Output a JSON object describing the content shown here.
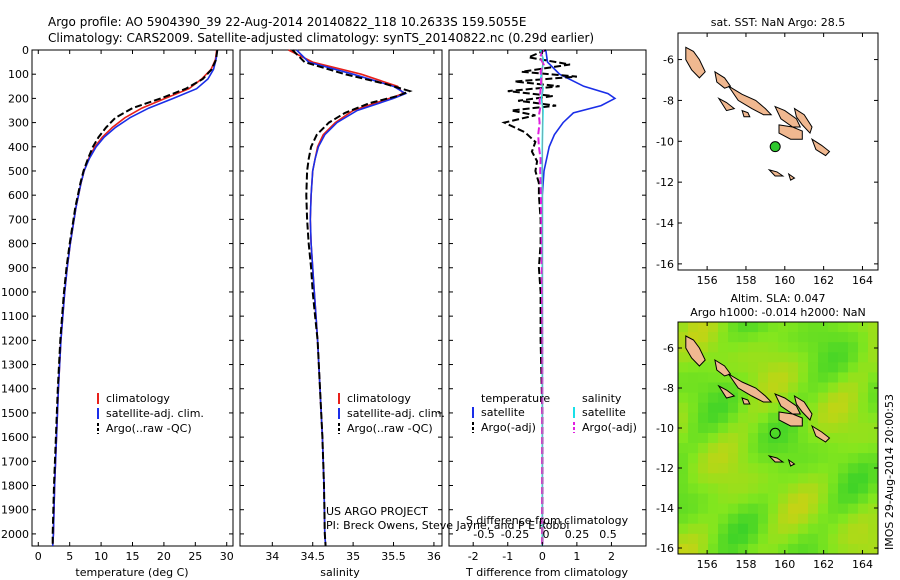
{
  "header": {
    "title_line1": "Argo profile: AO 5904390_39 22-Aug-2014 20140822_118 10.2633S 159.5055E",
    "title_line2": "Climatology: CARS2009. Satellite-adjusted climatology: synTS_20140822.nc (0.29d earlier)"
  },
  "colors": {
    "climatology": "#e8201a",
    "satellite": "#1a2ee8",
    "argo": "#000000",
    "sat_salinity": "#18e0e8",
    "argo_salinity": "#e020e0",
    "land": "#f0b890",
    "sla_base": "#5ad22a"
  },
  "credit": {
    "line1": "US ARGO PROJECT",
    "line2": "PI: Breck Owens, Steve Jayne, and P E Robbi"
  },
  "side_label": "IMOS 29-Aug-2014 20:00:53",
  "chart_data": [
    {
      "type": "line",
      "name": "temperature-profile",
      "xlabel": "temperature (deg C)",
      "ylim": [
        2050,
        0
      ],
      "xlim": [
        -1,
        31
      ],
      "xticks": [
        0,
        5,
        10,
        15,
        20,
        25,
        30
      ],
      "yticks": [
        0,
        100,
        200,
        300,
        400,
        500,
        600,
        700,
        800,
        900,
        1000,
        1100,
        1200,
        1300,
        1400,
        1500,
        1600,
        1700,
        1800,
        1900,
        2000
      ],
      "legend": [
        "climatology",
        "satellite-adj. clim.",
        "Argo(..raw -QC)"
      ],
      "legend_placement": "lower-center",
      "series": [
        {
          "name": "climatology",
          "color": "#e8201a",
          "style": "solid",
          "depth": [
            0,
            40,
            80,
            120,
            160,
            200,
            240,
            280,
            320,
            360,
            400,
            450,
            500,
            550,
            600,
            650,
            700,
            800,
            900,
            1000,
            1100,
            1200,
            1400,
            1600,
            1800,
            2000,
            2050
          ],
          "values": [
            28.4,
            28.2,
            27.5,
            26.0,
            24.0,
            20.2,
            16.5,
            13.8,
            11.8,
            10.2,
            9.0,
            8.0,
            7.3,
            6.8,
            6.4,
            6.0,
            5.7,
            5.1,
            4.6,
            4.2,
            3.9,
            3.6,
            3.2,
            2.9,
            2.6,
            2.4,
            2.3
          ]
        },
        {
          "name": "satellite-adj. clim.",
          "color": "#1a2ee8",
          "style": "solid",
          "depth": [
            0,
            40,
            80,
            120,
            160,
            200,
            240,
            280,
            320,
            360,
            400,
            450,
            500,
            550,
            600,
            650,
            700,
            800,
            900,
            1000,
            1100,
            1200,
            1400,
            1600,
            1800,
            2000,
            2050
          ],
          "values": [
            28.5,
            28.3,
            27.9,
            27.0,
            25.2,
            21.5,
            17.6,
            14.6,
            12.3,
            10.5,
            9.2,
            8.1,
            7.3,
            6.8,
            6.4,
            6.0,
            5.7,
            5.1,
            4.6,
            4.2,
            3.9,
            3.6,
            3.2,
            2.9,
            2.6,
            2.4,
            2.3
          ]
        },
        {
          "name": "Argo(..raw -QC)",
          "color": "#000000",
          "style": "dashed",
          "depth": [
            0,
            40,
            80,
            120,
            160,
            200,
            240,
            280,
            320,
            360,
            400,
            450,
            500,
            550,
            600,
            650,
            700,
            800,
            900,
            1000,
            1100,
            1200,
            1400,
            1600,
            1800,
            2000,
            2050
          ],
          "values": [
            28.5,
            28.3,
            27.6,
            26.2,
            23.5,
            19.5,
            15.0,
            12.3,
            10.8,
            9.6,
            8.7,
            7.9,
            7.2,
            6.7,
            6.3,
            5.9,
            5.6,
            5.0,
            4.5,
            4.1,
            3.8,
            3.5,
            3.1,
            2.8,
            2.5,
            2.3,
            2.3
          ]
        }
      ]
    },
    {
      "type": "line",
      "name": "salinity-profile",
      "xlabel": "salinity",
      "ylim": [
        2050,
        0
      ],
      "xlim": [
        33.6,
        36.1
      ],
      "xticks": [
        34,
        34.5,
        35,
        35.5,
        36
      ],
      "legend": [
        "climatology",
        "satellite-adj. clim.",
        "Argo(..raw -QC)"
      ],
      "legend_placement": "lower-right",
      "series": [
        {
          "name": "climatology",
          "color": "#e8201a",
          "style": "solid",
          "depth": [
            0,
            50,
            100,
            150,
            180,
            200,
            250,
            300,
            350,
            400,
            450,
            500,
            600,
            700,
            800,
            900,
            1000,
            1100,
            1200,
            1400,
            1600,
            1800,
            2000,
            2050
          ],
          "values": [
            34.2,
            34.5,
            35.1,
            35.55,
            35.62,
            35.45,
            35.0,
            34.78,
            34.63,
            34.56,
            34.53,
            34.5,
            34.48,
            34.47,
            34.48,
            34.5,
            34.52,
            34.54,
            34.56,
            34.59,
            34.62,
            34.64,
            34.65,
            34.66
          ]
        },
        {
          "name": "satellite-adj. clim.",
          "color": "#1a2ee8",
          "style": "solid",
          "depth": [
            0,
            50,
            100,
            150,
            180,
            200,
            250,
            300,
            350,
            400,
            450,
            500,
            600,
            700,
            800,
            900,
            1000,
            1100,
            1200,
            1400,
            1600,
            1800,
            2000,
            2050
          ],
          "values": [
            34.3,
            34.45,
            35.0,
            35.5,
            35.65,
            35.5,
            35.05,
            34.8,
            34.65,
            34.57,
            34.53,
            34.5,
            34.48,
            34.47,
            34.48,
            34.5,
            34.52,
            34.54,
            34.56,
            34.59,
            34.62,
            34.64,
            34.65,
            34.66
          ]
        },
        {
          "name": "Argo(..raw -QC)",
          "color": "#000000",
          "style": "dashed",
          "depth": [
            0,
            50,
            100,
            140,
            170,
            190,
            220,
            260,
            300,
            350,
            400,
            450,
            500,
            600,
            700,
            800,
            900,
            1000,
            1100,
            1200,
            1400,
            1600,
            1800,
            2000,
            2050
          ],
          "values": [
            34.25,
            34.4,
            34.9,
            35.4,
            35.7,
            35.55,
            35.2,
            34.9,
            34.7,
            34.55,
            34.48,
            34.45,
            34.43,
            34.42,
            34.43,
            34.45,
            34.48,
            34.5,
            34.53,
            34.56,
            34.59,
            34.62,
            34.64,
            34.65,
            34.66
          ]
        }
      ]
    },
    {
      "type": "line",
      "name": "difference-profile",
      "xlabel": "T difference from climatology",
      "xlabel_top": "S difference from climatology",
      "ylim": [
        2050,
        0
      ],
      "xlim": [
        -2.7,
        3
      ],
      "xticks": [
        -2,
        -1,
        0,
        1,
        2
      ],
      "xticks_top": [
        "-0.5",
        "-0.25",
        "0",
        "0.25",
        "0.5"
      ],
      "legend_temperature": {
        "title": "temperature",
        "items": [
          "satellite",
          "Argo(-adj)"
        ]
      },
      "legend_salinity": {
        "title": "salinity",
        "items": [
          "satellite",
          "Argo(-adj)"
        ]
      },
      "legend_placement": "lower-center",
      "series": [
        {
          "name": "temperature satellite",
          "color": "#1a2ee8",
          "style": "solid",
          "depth": [
            0,
            50,
            100,
            150,
            180,
            200,
            230,
            260,
            300,
            350,
            400,
            500,
            600,
            800,
            1000,
            1500,
            2050
          ],
          "values": [
            0.1,
            0.15,
            0.5,
            1.2,
            1.9,
            2.1,
            1.7,
            0.9,
            0.6,
            0.35,
            0.2,
            0.05,
            0,
            0,
            0,
            0,
            0
          ]
        },
        {
          "name": "temperature Argo(-adj)",
          "color": "#000000",
          "style": "dashed",
          "depth": [
            0,
            30,
            60,
            90,
            110,
            130,
            150,
            170,
            190,
            210,
            230,
            250,
            270,
            300,
            340,
            380,
            420,
            460,
            500,
            550,
            600,
            700,
            800,
            900,
            1000,
            1200,
            1500,
            1800,
            2050
          ],
          "values": [
            0.1,
            -0.4,
            0.8,
            -0.6,
            1.0,
            -0.8,
            0.5,
            -1.0,
            0.3,
            -0.7,
            0.4,
            -0.9,
            -0.2,
            -1.1,
            -0.5,
            -0.2,
            -0.3,
            -0.15,
            -0.2,
            -0.1,
            -0.1,
            -0.05,
            -0.05,
            -0.1,
            -0.05,
            -0.05,
            0,
            0,
            0
          ]
        },
        {
          "name": "salinity satellite",
          "color": "#18e0e8",
          "style": "solid",
          "depth": [
            0,
            40,
            80,
            120,
            160,
            200,
            250,
            300,
            400,
            500,
            600,
            800,
            1000,
            1500,
            2050
          ],
          "values": [
            -0.05,
            0.03,
            0.0,
            -0.05,
            0.02,
            -0.02,
            0.02,
            0.01,
            0.0,
            0.0,
            0.0,
            0.0,
            0.0,
            0.0,
            0.0
          ]
        },
        {
          "name": "salinity Argo(-adj)",
          "color": "#e020e0",
          "style": "dashed",
          "depth": [
            0,
            30,
            60,
            90,
            120,
            150,
            180,
            210,
            240,
            270,
            300,
            350,
            400,
            450,
            500,
            600,
            700,
            800,
            1000,
            1200,
            1500,
            2050
          ],
          "values": [
            0.03,
            -0.07,
            0.04,
            -0.05,
            -0.03,
            -0.04,
            -0.06,
            -0.08,
            -0.06,
            -0.1,
            -0.08,
            -0.12,
            -0.1,
            -0.05,
            -0.06,
            -0.04,
            -0.03,
            -0.02,
            -0.01,
            0,
            0,
            0
          ]
        }
      ]
    },
    {
      "type": "scatter",
      "name": "sst-map",
      "title": "sat. SST: NaN  Argo: 28.5",
      "xlim": [
        154.5,
        164.8
      ],
      "ylim": [
        -16.3,
        -4.7
      ],
      "xticks": [
        156,
        158,
        160,
        162,
        164
      ],
      "yticks": [
        -6,
        -8,
        -10,
        -12,
        -14,
        -16
      ],
      "argo_position": {
        "lon": 159.5055,
        "lat": -10.2633
      }
    },
    {
      "type": "heatmap",
      "name": "sla-map",
      "title_line1": "Altim. SLA: 0.047",
      "title_line2": "Argo h1000: -0.014 h2000: NaN",
      "xlim": [
        154.5,
        164.8
      ],
      "ylim": [
        -16.3,
        -4.7
      ],
      "xticks": [
        156,
        158,
        160,
        162,
        164
      ],
      "yticks": [
        -6,
        -8,
        -10,
        -12,
        -14,
        -16
      ],
      "argo_position": {
        "lon": 159.5055,
        "lat": -10.2633
      }
    }
  ]
}
